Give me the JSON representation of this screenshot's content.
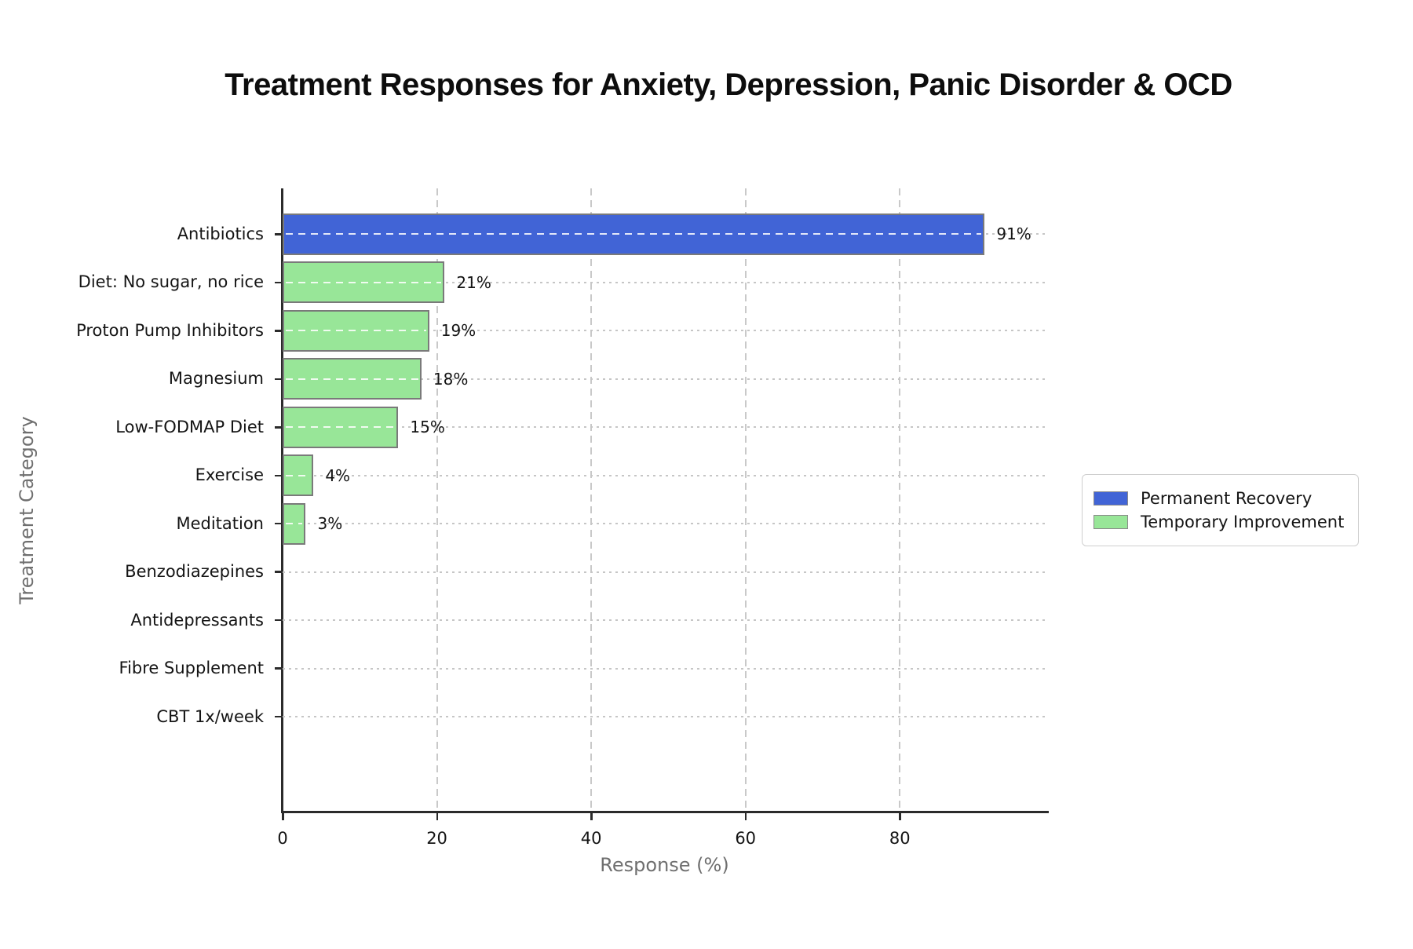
{
  "chart_data": {
    "type": "bar",
    "orientation": "horizontal",
    "title": "Treatment Responses for Anxiety, Depression, Panic Disorder & OCD",
    "xlabel": "Response (%)",
    "ylabel": "Treatment Category",
    "xlim": [
      0,
      99
    ],
    "xticks": [
      "0",
      "20",
      "40",
      "60",
      "80"
    ],
    "xtick_values": [
      0,
      20,
      40,
      60,
      80
    ],
    "grid": true,
    "legend_position": "right of plot, middle",
    "categories": [
      "Antibiotics",
      "Diet: No sugar, no rice",
      "Proton Pump Inhibitors",
      "Magnesium",
      "Low-FODMAP Diet",
      "Exercise",
      "Meditation",
      "Benzodiazepines",
      "Antidepressants",
      "Fibre Supplement",
      "CBT 1x/week"
    ],
    "values": [
      91,
      21,
      19,
      18,
      15,
      4,
      3,
      0,
      0,
      0,
      0
    ],
    "value_labels": [
      "91%",
      "21%",
      "19%",
      "18%",
      "15%",
      "4%",
      "3%",
      "",
      "",
      "",
      ""
    ],
    "series_of": [
      "permanent",
      "temporary",
      "temporary",
      "temporary",
      "temporary",
      "temporary",
      "temporary",
      "temporary",
      "temporary",
      "temporary",
      "temporary"
    ],
    "colors": {
      "permanent": "#4164d6",
      "temporary": "#98e698",
      "bar_edge": "#7a7a7a",
      "axis": "#2b2b2b",
      "grid": "#c9c9c9",
      "text": "#141414",
      "muted_text": "#6f6f6f"
    },
    "legend": [
      {
        "key": "permanent",
        "label": "Permanent Recovery"
      },
      {
        "key": "temporary",
        "label": "Temporary Improvement"
      }
    ]
  }
}
